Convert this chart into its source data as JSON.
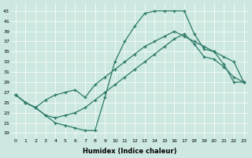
{
  "xlabel": "Humidex (Indice chaleur)",
  "bg_color": "#cce8e0",
  "line_color": "#2d7a6a",
  "xlim": [
    -0.5,
    23.5
  ],
  "ylim": [
    18,
    44.5
  ],
  "yticks": [
    19,
    21,
    23,
    25,
    27,
    29,
    31,
    33,
    35,
    37,
    39,
    41,
    43
  ],
  "xticks": [
    0,
    1,
    2,
    3,
    4,
    5,
    6,
    7,
    8,
    9,
    10,
    11,
    12,
    13,
    14,
    15,
    16,
    17,
    18,
    19,
    20,
    21,
    22,
    23
  ],
  "line1_x": [
    0,
    1,
    2,
    3,
    4,
    5,
    6,
    7,
    8,
    9,
    10,
    11,
    12,
    13,
    14,
    15,
    16,
    17,
    18,
    19,
    20,
    21,
    22,
    23
  ],
  "line1_y": [
    26.5,
    25.0,
    24.0,
    22.5,
    21.0,
    20.5,
    20.0,
    19.5,
    19.5,
    26.0,
    33.0,
    37.0,
    40.0,
    42.5,
    43.0,
    43.0,
    43.0,
    43.0,
    38.5,
    35.5,
    35.0,
    32.5,
    29.0,
    29.0
  ],
  "line2_x": [
    0,
    1,
    2,
    3,
    4,
    5,
    6,
    7,
    8,
    9,
    10,
    11,
    12,
    13,
    14,
    15,
    16,
    17,
    18,
    19,
    20,
    21,
    22,
    23
  ],
  "line2_y": [
    26.5,
    25.0,
    24.0,
    25.5,
    26.5,
    27.0,
    27.5,
    26.0,
    28.5,
    30.0,
    31.5,
    33.0,
    34.5,
    36.0,
    37.0,
    38.0,
    39.0,
    38.0,
    37.0,
    36.0,
    35.0,
    34.0,
    33.0,
    29.0
  ],
  "line3_x": [
    0,
    1,
    2,
    3,
    4,
    5,
    6,
    7,
    8,
    9,
    10,
    11,
    12,
    13,
    14,
    15,
    16,
    17,
    18,
    19,
    20,
    21,
    22,
    23
  ],
  "line3_y": [
    26.5,
    25.0,
    24.0,
    22.5,
    22.0,
    22.5,
    23.0,
    24.0,
    25.5,
    27.0,
    28.5,
    30.0,
    31.5,
    33.0,
    34.5,
    36.0,
    37.5,
    38.5,
    36.5,
    34.0,
    33.5,
    32.0,
    30.0,
    29.0
  ]
}
